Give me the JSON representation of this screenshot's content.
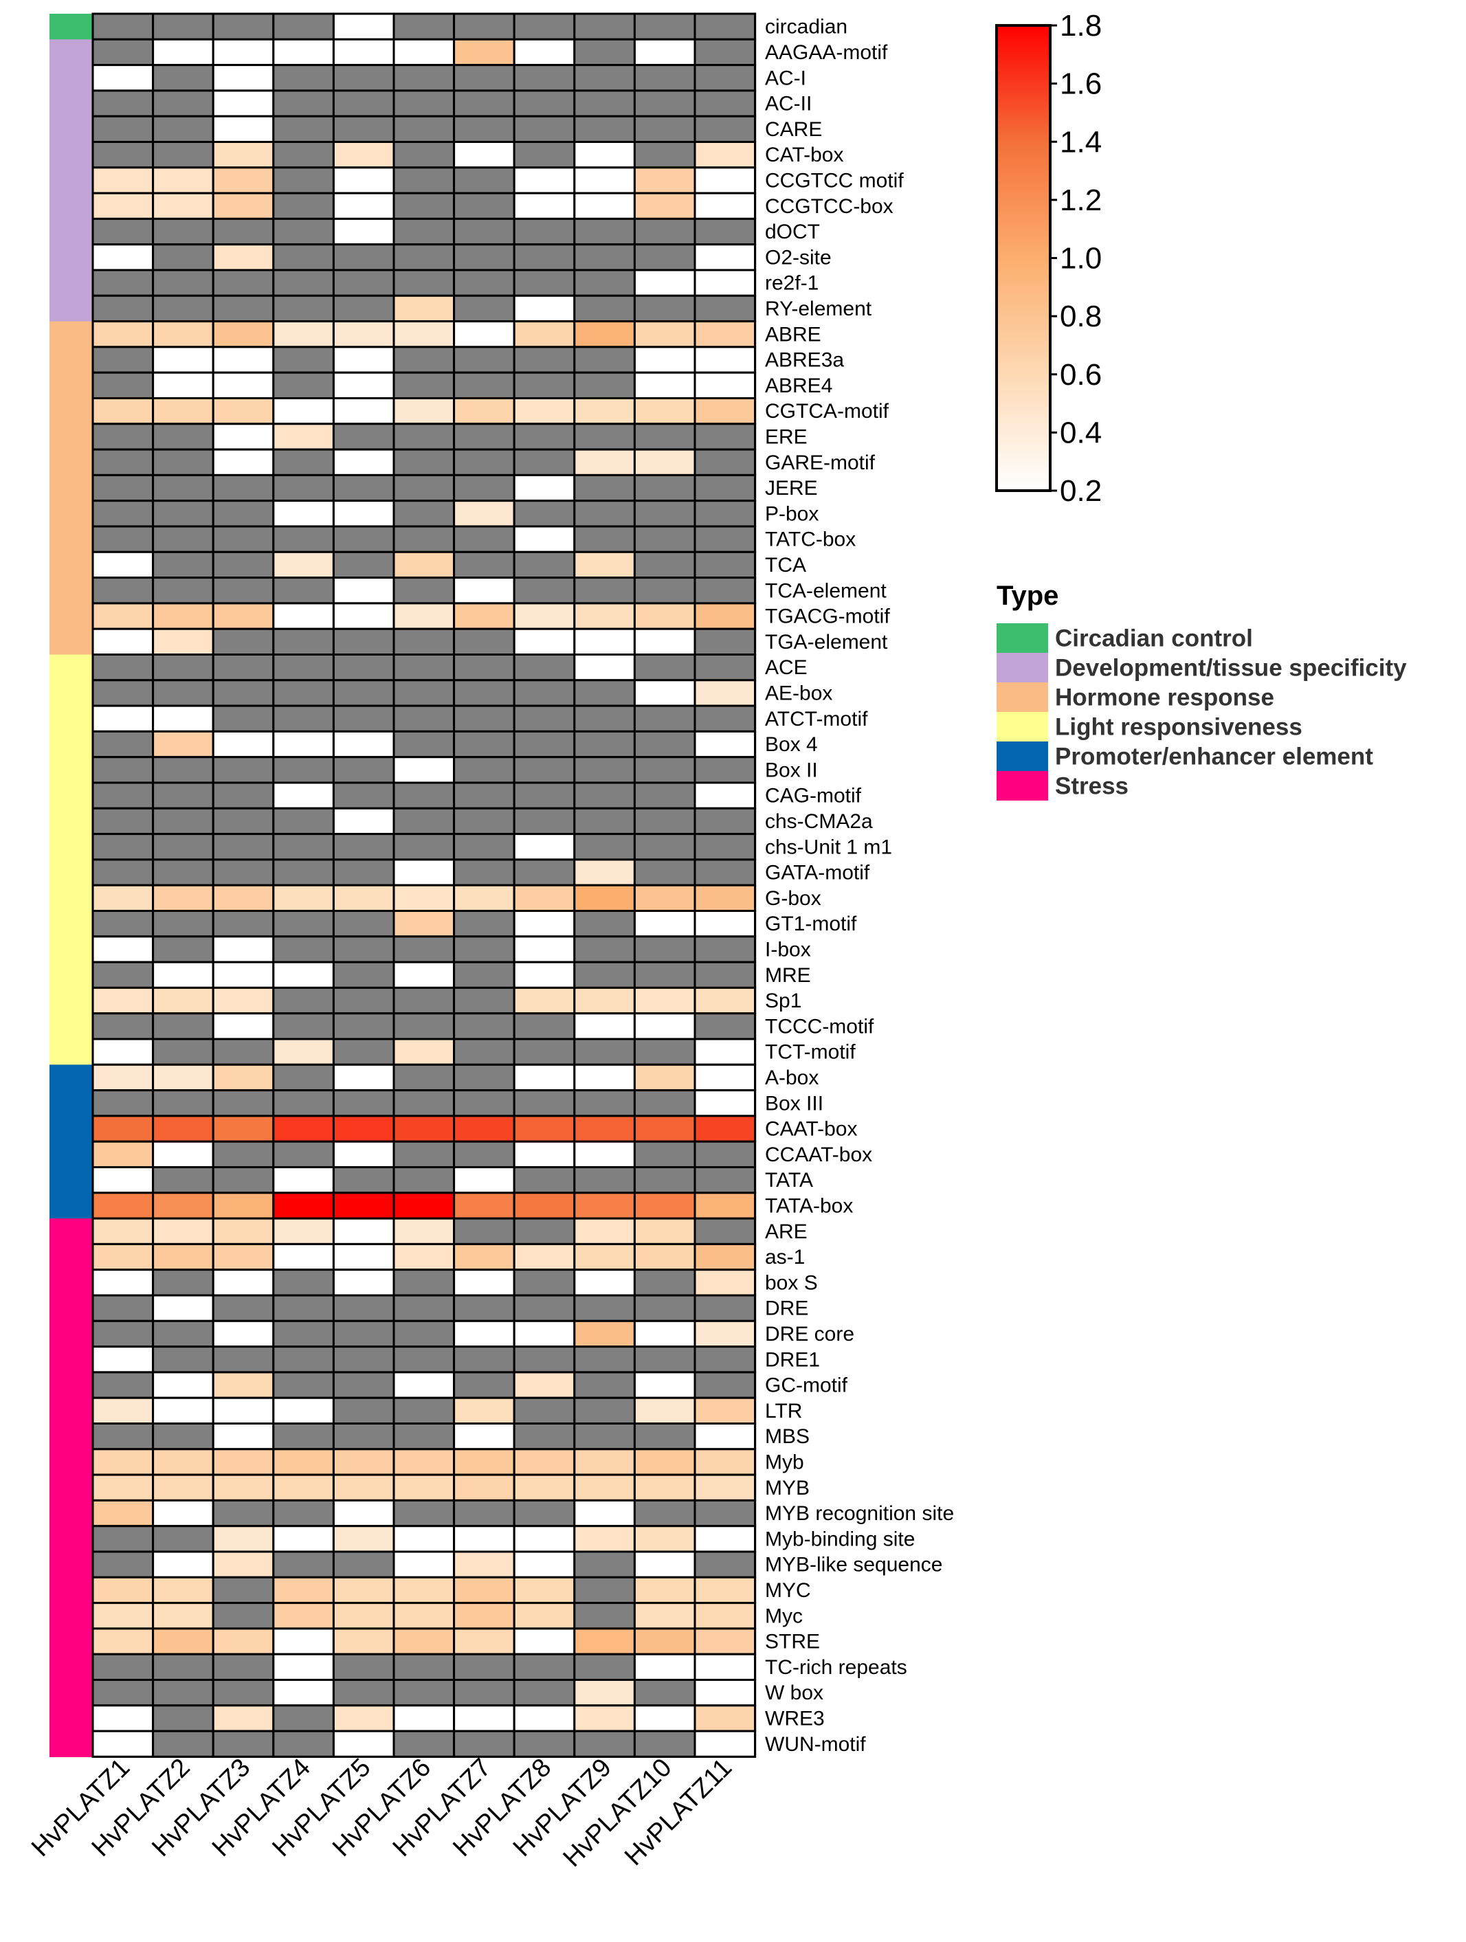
{
  "chart_data": {
    "type": "heatmap",
    "na_color": "#808080",
    "scale": {
      "min": 0.2,
      "max": 1.8,
      "ticks": [
        "1.8",
        "1.6",
        "1.4",
        "1.2",
        "1.0",
        "0.8",
        "0.6",
        "0.4",
        "0.2"
      ],
      "colors": [
        "#ffffff",
        "#fdd9b4",
        "#fcae6e",
        "#f4703a",
        "#ff0000"
      ]
    },
    "columns": [
      "HvPLATZ1",
      "HvPLATZ2",
      "HvPLATZ3",
      "HvPLATZ4",
      "HvPLATZ5",
      "HvPLATZ6",
      "HvPLATZ7",
      "HvPLATZ8",
      "HvPLATZ9",
      "HvPLATZ10",
      "HvPLATZ11"
    ],
    "legend_title": "Type",
    "types": [
      {
        "name": "Circadian control",
        "color": "#3dbd6e"
      },
      {
        "name": "Development/tissue specificity",
        "color": "#c2a5d6"
      },
      {
        "name": "Hormone response",
        "color": "#fbbb84"
      },
      {
        "name": "Light responsiveness",
        "color": "#ffff8f"
      },
      {
        "name": "Promoter/enhancer element",
        "color": "#0466b0"
      },
      {
        "name": "Stress",
        "color": "#ff0080"
      }
    ],
    "rows": [
      {
        "label": "circadian",
        "type": 0,
        "values": [
          null,
          null,
          null,
          null,
          0.2,
          null,
          null,
          null,
          null,
          null,
          null
        ]
      },
      {
        "label": "AAGAA-motif",
        "type": 1,
        "values": [
          null,
          0.2,
          0.2,
          0.2,
          0.2,
          0.2,
          0.8,
          0.2,
          null,
          0.2,
          null
        ]
      },
      {
        "label": "AC-I",
        "type": 1,
        "values": [
          0.2,
          null,
          0.2,
          null,
          null,
          null,
          null,
          null,
          null,
          null,
          null
        ]
      },
      {
        "label": "AC-II",
        "type": 1,
        "values": [
          null,
          null,
          0.2,
          null,
          null,
          null,
          null,
          null,
          null,
          null,
          null
        ]
      },
      {
        "label": "CARE",
        "type": 1,
        "values": [
          null,
          null,
          0.2,
          null,
          null,
          null,
          null,
          null,
          null,
          null,
          null
        ]
      },
      {
        "label": "CAT-box",
        "type": 1,
        "values": [
          null,
          null,
          0.55,
          null,
          0.5,
          null,
          0.2,
          null,
          0.2,
          null,
          0.5
        ]
      },
      {
        "label": "CCGTCC motif",
        "type": 1,
        "values": [
          0.5,
          0.5,
          0.7,
          null,
          0.2,
          null,
          null,
          0.2,
          0.2,
          0.7,
          0.2
        ]
      },
      {
        "label": "CCGTCC-box",
        "type": 1,
        "values": [
          0.5,
          0.5,
          0.7,
          null,
          0.2,
          null,
          null,
          0.2,
          0.2,
          0.7,
          0.2
        ]
      },
      {
        "label": "dOCT",
        "type": 1,
        "values": [
          null,
          null,
          null,
          null,
          0.2,
          null,
          null,
          null,
          null,
          null,
          null
        ]
      },
      {
        "label": "O2-site",
        "type": 1,
        "values": [
          0.2,
          null,
          0.5,
          null,
          null,
          null,
          null,
          null,
          null,
          null,
          0.2
        ]
      },
      {
        "label": "re2f-1",
        "type": 1,
        "values": [
          null,
          null,
          null,
          null,
          null,
          null,
          null,
          null,
          null,
          0.2,
          0.2
        ]
      },
      {
        "label": "RY-element",
        "type": 1,
        "values": [
          null,
          null,
          null,
          null,
          null,
          0.6,
          null,
          0.2,
          null,
          null,
          null
        ]
      },
      {
        "label": "ABRE",
        "type": 2,
        "values": [
          0.65,
          0.65,
          0.8,
          0.45,
          0.45,
          0.45,
          0.2,
          0.65,
          0.95,
          0.65,
          0.7
        ]
      },
      {
        "label": "ABRE3a",
        "type": 2,
        "values": [
          null,
          0.2,
          0.2,
          null,
          0.2,
          null,
          null,
          null,
          null,
          0.2,
          0.2
        ]
      },
      {
        "label": "ABRE4",
        "type": 2,
        "values": [
          null,
          0.2,
          0.2,
          null,
          0.2,
          null,
          null,
          null,
          null,
          0.2,
          0.2
        ]
      },
      {
        "label": "CGTCA-motif",
        "type": 2,
        "values": [
          0.65,
          0.65,
          0.65,
          0.2,
          0.2,
          0.45,
          0.65,
          0.5,
          0.55,
          0.6,
          0.75
        ]
      },
      {
        "label": "ERE",
        "type": 2,
        "values": [
          null,
          null,
          0.2,
          0.5,
          null,
          null,
          null,
          null,
          null,
          null,
          null
        ]
      },
      {
        "label": "GARE-motif",
        "type": 2,
        "values": [
          null,
          null,
          0.2,
          null,
          0.2,
          null,
          null,
          null,
          0.45,
          0.45,
          null
        ]
      },
      {
        "label": "JERE",
        "type": 2,
        "values": [
          null,
          null,
          null,
          null,
          null,
          null,
          null,
          0.2,
          null,
          null,
          null
        ]
      },
      {
        "label": "P-box",
        "type": 2,
        "values": [
          null,
          null,
          null,
          0.2,
          0.2,
          null,
          0.45,
          null,
          null,
          null,
          null
        ]
      },
      {
        "label": "TATC-box",
        "type": 2,
        "values": [
          null,
          null,
          null,
          null,
          null,
          null,
          null,
          0.2,
          null,
          null,
          null
        ]
      },
      {
        "label": "TCA",
        "type": 2,
        "values": [
          0.2,
          null,
          null,
          0.45,
          null,
          0.65,
          null,
          null,
          0.55,
          null,
          null
        ]
      },
      {
        "label": "TCA-element",
        "type": 2,
        "values": [
          null,
          null,
          null,
          null,
          0.2,
          null,
          0.2,
          null,
          null,
          null,
          null
        ]
      },
      {
        "label": "TGACG-motif",
        "type": 2,
        "values": [
          0.65,
          0.75,
          0.75,
          0.2,
          0.2,
          0.45,
          0.75,
          0.45,
          0.55,
          0.65,
          0.85
        ]
      },
      {
        "label": "TGA-element",
        "type": 2,
        "values": [
          0.2,
          0.5,
          null,
          null,
          null,
          null,
          null,
          0.2,
          0.2,
          0.2,
          null
        ]
      },
      {
        "label": "ACE",
        "type": 3,
        "values": [
          null,
          null,
          null,
          null,
          null,
          null,
          null,
          null,
          0.2,
          null,
          null
        ]
      },
      {
        "label": "AE-box",
        "type": 3,
        "values": [
          null,
          null,
          null,
          null,
          null,
          null,
          null,
          null,
          null,
          0.2,
          0.45
        ]
      },
      {
        "label": "ATCT-motif",
        "type": 3,
        "values": [
          0.2,
          0.2,
          null,
          null,
          null,
          null,
          null,
          null,
          null,
          null,
          null
        ]
      },
      {
        "label": "Box 4",
        "type": 3,
        "values": [
          null,
          0.7,
          0.2,
          0.2,
          0.2,
          null,
          null,
          null,
          null,
          null,
          0.2
        ]
      },
      {
        "label": "Box II",
        "type": 3,
        "values": [
          null,
          null,
          null,
          null,
          null,
          0.2,
          null,
          null,
          null,
          null,
          null
        ]
      },
      {
        "label": "CAG-motif",
        "type": 3,
        "values": [
          null,
          null,
          null,
          0.2,
          null,
          null,
          null,
          null,
          null,
          null,
          0.2
        ]
      },
      {
        "label": "chs-CMA2a",
        "type": 3,
        "values": [
          null,
          null,
          null,
          null,
          0.2,
          null,
          null,
          null,
          null,
          null,
          null
        ]
      },
      {
        "label": "chs-Unit 1 m1",
        "type": 3,
        "values": [
          null,
          null,
          null,
          null,
          null,
          null,
          null,
          0.2,
          null,
          null,
          null
        ]
      },
      {
        "label": "GATA-motif",
        "type": 3,
        "values": [
          null,
          null,
          null,
          null,
          null,
          0.2,
          null,
          null,
          0.45,
          null,
          null
        ]
      },
      {
        "label": "G-box",
        "type": 3,
        "values": [
          0.55,
          0.7,
          0.7,
          0.55,
          0.55,
          0.5,
          0.55,
          0.7,
          1.0,
          0.8,
          0.85
        ]
      },
      {
        "label": "GT1-motif",
        "type": 3,
        "values": [
          null,
          null,
          null,
          null,
          null,
          0.7,
          null,
          0.2,
          null,
          0.2,
          0.2
        ]
      },
      {
        "label": "I-box",
        "type": 3,
        "values": [
          0.2,
          null,
          0.2,
          null,
          null,
          null,
          null,
          0.2,
          null,
          null,
          null
        ]
      },
      {
        "label": "MRE",
        "type": 3,
        "values": [
          null,
          0.2,
          0.2,
          0.2,
          null,
          0.2,
          null,
          0.2,
          null,
          null,
          null
        ]
      },
      {
        "label": "Sp1",
        "type": 3,
        "values": [
          0.5,
          0.55,
          0.5,
          null,
          null,
          null,
          null,
          0.55,
          0.55,
          0.5,
          0.55
        ]
      },
      {
        "label": "TCCC-motif",
        "type": 3,
        "values": [
          null,
          null,
          0.2,
          null,
          null,
          null,
          null,
          null,
          0.2,
          0.2,
          null
        ]
      },
      {
        "label": "TCT-motif",
        "type": 3,
        "values": [
          0.2,
          null,
          null,
          0.45,
          null,
          0.5,
          null,
          null,
          null,
          null,
          0.2
        ]
      },
      {
        "label": "A-box",
        "type": 4,
        "values": [
          0.45,
          0.45,
          0.65,
          null,
          0.2,
          null,
          null,
          0.2,
          0.2,
          0.65,
          0.2
        ]
      },
      {
        "label": "Box III",
        "type": 4,
        "values": [
          null,
          null,
          null,
          null,
          null,
          null,
          null,
          null,
          null,
          null,
          0.2
        ]
      },
      {
        "label": "CAAT-box",
        "type": 4,
        "values": [
          1.4,
          1.45,
          1.35,
          1.6,
          1.6,
          1.55,
          1.55,
          1.45,
          1.45,
          1.45,
          1.55
        ]
      },
      {
        "label": "CCAAT-box",
        "type": 4,
        "values": [
          0.75,
          0.2,
          null,
          null,
          0.2,
          null,
          null,
          0.2,
          0.2,
          null,
          null
        ]
      },
      {
        "label": "TATA",
        "type": 4,
        "values": [
          0.2,
          null,
          null,
          0.2,
          null,
          null,
          0.2,
          null,
          null,
          null,
          null
        ]
      },
      {
        "label": "TATA-box",
        "type": 4,
        "values": [
          1.3,
          1.2,
          0.95,
          1.8,
          1.8,
          1.8,
          1.3,
          1.35,
          1.3,
          1.3,
          0.95
        ]
      },
      {
        "label": "ARE",
        "type": 5,
        "values": [
          0.55,
          0.5,
          0.6,
          0.45,
          0.2,
          0.45,
          null,
          null,
          0.5,
          0.6,
          null
        ]
      },
      {
        "label": "as-1",
        "type": 5,
        "values": [
          0.65,
          0.75,
          0.7,
          0.2,
          0.2,
          0.5,
          0.75,
          0.5,
          0.6,
          0.65,
          0.85
        ]
      },
      {
        "label": "box S",
        "type": 5,
        "values": [
          0.2,
          null,
          0.2,
          null,
          0.2,
          null,
          0.2,
          null,
          0.2,
          null,
          0.5
        ]
      },
      {
        "label": "DRE",
        "type": 5,
        "values": [
          null,
          0.2,
          null,
          null,
          null,
          null,
          null,
          null,
          null,
          null,
          null
        ]
      },
      {
        "label": "DRE core",
        "type": 5,
        "values": [
          null,
          null,
          0.2,
          null,
          null,
          null,
          0.2,
          0.2,
          0.85,
          0.2,
          0.45
        ]
      },
      {
        "label": "DRE1",
        "type": 5,
        "values": [
          0.2,
          null,
          null,
          null,
          null,
          null,
          null,
          null,
          null,
          null,
          null
        ]
      },
      {
        "label": "GC-motif",
        "type": 5,
        "values": [
          null,
          0.2,
          0.6,
          null,
          null,
          0.2,
          null,
          0.5,
          null,
          0.2,
          null
        ]
      },
      {
        "label": "LTR",
        "type": 5,
        "values": [
          0.45,
          0.2,
          0.2,
          0.2,
          null,
          null,
          0.55,
          null,
          null,
          0.45,
          0.7
        ]
      },
      {
        "label": "MBS",
        "type": 5,
        "values": [
          null,
          null,
          0.2,
          null,
          null,
          null,
          0.2,
          null,
          null,
          null,
          0.2
        ]
      },
      {
        "label": "Myb",
        "type": 5,
        "values": [
          0.65,
          0.65,
          0.7,
          0.75,
          0.7,
          0.7,
          0.75,
          0.7,
          0.65,
          0.75,
          0.65
        ]
      },
      {
        "label": "MYB",
        "type": 5,
        "values": [
          0.6,
          0.6,
          0.6,
          0.6,
          0.6,
          0.6,
          0.65,
          0.6,
          0.6,
          0.6,
          0.55
        ]
      },
      {
        "label": "MYB recognition site",
        "type": 5,
        "values": [
          0.75,
          0.2,
          null,
          null,
          0.2,
          null,
          null,
          null,
          0.2,
          null,
          null
        ]
      },
      {
        "label": "Myb-binding site",
        "type": 5,
        "values": [
          null,
          null,
          0.45,
          0.2,
          0.45,
          0.2,
          0.2,
          0.2,
          0.5,
          0.55,
          0.2
        ]
      },
      {
        "label": "MYB-like sequence",
        "type": 5,
        "values": [
          null,
          0.2,
          0.5,
          null,
          null,
          0.2,
          0.5,
          0.2,
          null,
          0.2,
          null
        ]
      },
      {
        "label": "MYC",
        "type": 5,
        "values": [
          0.65,
          0.6,
          null,
          0.7,
          0.6,
          0.6,
          0.75,
          0.6,
          null,
          0.6,
          0.6
        ]
      },
      {
        "label": "Myc",
        "type": 5,
        "values": [
          0.55,
          0.55,
          null,
          0.7,
          0.6,
          0.6,
          0.75,
          0.6,
          null,
          0.55,
          0.6
        ]
      },
      {
        "label": "STRE",
        "type": 5,
        "values": [
          0.6,
          0.8,
          0.65,
          0.2,
          0.6,
          0.75,
          0.6,
          0.2,
          0.9,
          0.85,
          0.7
        ]
      },
      {
        "label": "TC-rich repeats",
        "type": 5,
        "values": [
          null,
          null,
          null,
          0.2,
          null,
          null,
          null,
          null,
          null,
          0.2,
          0.2
        ]
      },
      {
        "label": "W box",
        "type": 5,
        "values": [
          null,
          null,
          null,
          0.2,
          null,
          null,
          null,
          null,
          0.45,
          null,
          0.2
        ]
      },
      {
        "label": "WRE3",
        "type": 5,
        "values": [
          0.2,
          null,
          0.5,
          null,
          0.5,
          0.2,
          0.2,
          0.2,
          0.5,
          0.2,
          0.65
        ]
      },
      {
        "label": "WUN-motif",
        "type": 5,
        "values": [
          0.2,
          null,
          null,
          null,
          0.2,
          null,
          null,
          null,
          null,
          null,
          0.2
        ]
      }
    ]
  }
}
